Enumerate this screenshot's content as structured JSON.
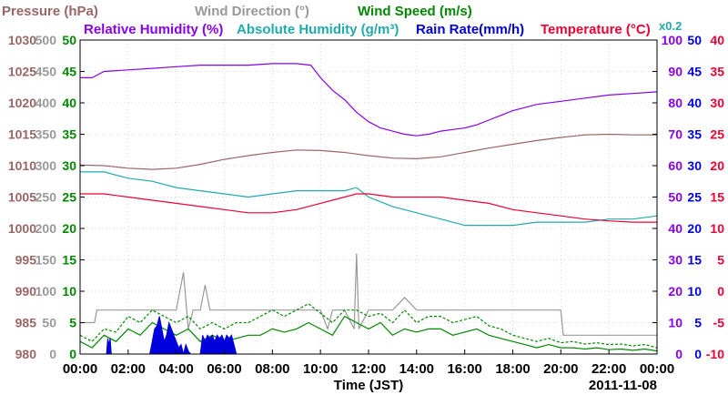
{
  "chart_data": {
    "type": "line",
    "date": "2011-11-08",
    "xlabel": "Time (JST)",
    "x_ticks": [
      "00:00",
      "02:00",
      "04:00",
      "06:00",
      "08:00",
      "10:00",
      "12:00",
      "14:00",
      "16:00",
      "18:00",
      "20:00",
      "22:00",
      "00:00"
    ],
    "xlim_hours": [
      0,
      24
    ],
    "grid": true,
    "legend_rows": [
      [
        {
          "name": "Pressure (hPa)",
          "color": "#996666"
        },
        {
          "name": "Wind Direction (°)",
          "color": "#999999"
        },
        {
          "name": "Wind Speed (m/s)",
          "color": "#008800"
        }
      ],
      [
        {
          "name": "Relative Humidity (%)",
          "color": "#8800ee"
        },
        {
          "name": "Absolute Humidity (g/m³)",
          "color": "#22aaaa"
        },
        {
          "name": "Rain Rate(mm/h)",
          "color": "#0000dd"
        },
        {
          "name": "Temperature (°C)",
          "color": "#ee0033"
        }
      ]
    ],
    "scale_note": "x0.2",
    "axes": {
      "pressure": {
        "ticks": [
          "1030",
          "1025",
          "1020",
          "1015",
          "1010",
          "1005",
          "1000",
          "995",
          "990",
          "985",
          "980"
        ],
        "ylim": [
          980,
          1030
        ],
        "color": "#996666"
      },
      "wind_direction": {
        "ticks": [
          "500",
          "450",
          "400",
          "350",
          "300",
          "250",
          "200",
          "150",
          "100",
          "50",
          "0"
        ],
        "ylim": [
          0,
          500
        ],
        "color": "#999999"
      },
      "wind_speed": {
        "ticks": [
          "50",
          "45",
          "40",
          "35",
          "30",
          "25",
          "20",
          "15",
          "10",
          "5",
          "0"
        ],
        "ylim": [
          0,
          50
        ],
        "color": "#008800"
      },
      "relative_humidity": {
        "ticks": [
          "100",
          "90",
          "80",
          "70",
          "60",
          "50",
          "40",
          "30",
          "20",
          "10",
          "0"
        ],
        "ylim": [
          0,
          100
        ],
        "color": "#8800ee"
      },
      "rain_rate": {
        "ticks": [
          "50",
          "45",
          "40",
          "35",
          "30",
          "25",
          "20",
          "15",
          "10",
          "5",
          "0"
        ],
        "ylim": [
          0,
          50
        ],
        "color": "#0000dd"
      },
      "temperature": {
        "ticks": [
          "40",
          "35",
          "30",
          "25",
          "20",
          "15",
          "10",
          "5",
          "0",
          "-5",
          "-10"
        ],
        "ylim": [
          -10,
          40
        ],
        "color": "#ee0033"
      }
    },
    "series": [
      {
        "name": "Relative Humidity (%)",
        "axis": "relative_humidity",
        "color": "#8800ee",
        "x": [
          0,
          0.5,
          1,
          2,
          3,
          4,
          5,
          6,
          7,
          8,
          9,
          9.6,
          10,
          10.5,
          11,
          11.5,
          12,
          12.5,
          13,
          13.5,
          14,
          14.5,
          15,
          15.5,
          16,
          16.5,
          17,
          17.5,
          18,
          18.5,
          19,
          20,
          21,
          22,
          23,
          24
        ],
        "y": [
          88,
          88,
          90,
          90.5,
          91,
          91.5,
          92,
          92,
          92,
          92.5,
          92.5,
          92,
          88,
          84,
          81,
          77,
          74,
          72,
          71,
          70,
          69.5,
          70,
          71,
          71.5,
          72,
          73,
          74.5,
          76,
          77.5,
          78.5,
          79.5,
          80.5,
          81.5,
          82.5,
          83,
          83.5
        ]
      },
      {
        "name": "Pressure (hPa)",
        "axis": "pressure",
        "color": "#996666",
        "x": [
          0,
          1,
          2,
          3,
          4,
          5,
          6,
          7,
          8,
          9,
          10,
          11,
          12,
          13,
          14,
          15,
          16,
          17,
          18,
          19,
          20,
          21,
          22,
          23,
          24
        ],
        "y": [
          1010.1,
          1010,
          1009.6,
          1009.4,
          1009.6,
          1010.2,
          1011,
          1011.6,
          1012.1,
          1012.5,
          1012.4,
          1012.1,
          1011.6,
          1011.2,
          1011.1,
          1011.4,
          1012.1,
          1012.8,
          1013.4,
          1014.0,
          1014.5,
          1014.9,
          1015.0,
          1014.9,
          1014.9
        ]
      },
      {
        "name": "Absolute Humidity (g/m³)",
        "axis": "wind_speed",
        "color": "#22aaaa",
        "x": [
          0,
          1,
          2,
          3,
          4,
          5,
          6,
          7,
          8,
          9,
          10,
          11,
          11.5,
          12,
          13,
          14,
          15,
          16,
          17,
          18,
          19,
          20,
          21,
          22,
          23,
          24
        ],
        "y": [
          29,
          29,
          28,
          27.5,
          26.5,
          26,
          25.5,
          25,
          25.5,
          26,
          26,
          26,
          26.5,
          25,
          23.5,
          22.5,
          21.5,
          20.5,
          20.5,
          20.5,
          21,
          21,
          21,
          21.5,
          21.5,
          22
        ]
      },
      {
        "name": "Temperature (°C)",
        "axis": "temperature",
        "color": "#ee0033",
        "x": [
          0,
          1,
          2,
          3,
          4,
          5,
          6,
          7,
          8,
          9,
          10,
          11,
          11.5,
          12,
          13,
          14,
          15,
          16,
          17,
          18,
          19,
          20,
          21,
          22,
          23,
          24
        ],
        "y": [
          15.5,
          15.5,
          15,
          14.5,
          14,
          13.5,
          13,
          12.5,
          12.5,
          13,
          14,
          15,
          15.5,
          15.5,
          15,
          15,
          15,
          14.5,
          14,
          13,
          12.5,
          12,
          11.5,
          11.2,
          11,
          11
        ]
      },
      {
        "name": "Wind Direction (°)",
        "axis": "wind_direction",
        "color": "#999999",
        "x": [
          0,
          0.6,
          0.7,
          1,
          2,
          3,
          4,
          4.3,
          4.5,
          4.7,
          5,
          5.2,
          5.4,
          6,
          7,
          8,
          9,
          10,
          10.3,
          10.5,
          11,
          11.4,
          11.5,
          11.6,
          12,
          12.5,
          13,
          13.5,
          14,
          14.5,
          15,
          15.5,
          16,
          16.5,
          17,
          17.5,
          18,
          19,
          20,
          20.1,
          21,
          22,
          23,
          24
        ],
        "y": [
          50,
          50,
          70,
          70,
          70,
          70,
          70,
          130,
          40,
          70,
          70,
          110,
          70,
          70,
          70,
          70,
          70,
          70,
          40,
          70,
          70,
          40,
          160,
          40,
          70,
          70,
          70,
          90,
          70,
          70,
          70,
          70,
          70,
          70,
          70,
          70,
          70,
          70,
          70,
          30,
          30,
          30,
          30,
          30
        ]
      },
      {
        "name": "Wind Speed (m/s)",
        "axis": "wind_speed",
        "color": "#008800",
        "x": [
          0,
          0.5,
          1,
          1.5,
          2,
          2.5,
          3,
          3.5,
          4,
          4.5,
          5,
          5.5,
          6,
          6.5,
          7,
          7.5,
          8,
          8.5,
          9,
          9.5,
          10,
          10.5,
          11,
          11.5,
          12,
          12.5,
          13,
          13.5,
          14,
          14.5,
          15,
          15.5,
          16,
          16.5,
          17,
          17.5,
          18,
          18.5,
          19,
          19.5,
          20,
          20.5,
          21,
          21.5,
          22,
          22.5,
          23,
          23.5,
          24
        ],
        "y": [
          2,
          1,
          3,
          2,
          4,
          3,
          5,
          4,
          3,
          4,
          2,
          3,
          2,
          2.5,
          3,
          3,
          4,
          3.5,
          4,
          5,
          4,
          3,
          6,
          5,
          4,
          5,
          3,
          4,
          3.5,
          4,
          4,
          3,
          3.5,
          4,
          3,
          2.5,
          2,
          1.5,
          1,
          1.5,
          1,
          1,
          0.8,
          1,
          0.7,
          0.8,
          0.6,
          0.8,
          0.5
        ]
      },
      {
        "name": "Wind Speed gust (m/s)",
        "axis": "wind_speed",
        "color": "#008800",
        "x": [
          0,
          0.5,
          1,
          1.5,
          2,
          2.5,
          3,
          3.5,
          4,
          4.5,
          5,
          5.5,
          6,
          6.5,
          7,
          7.5,
          8,
          8.5,
          9,
          9.5,
          10,
          10.5,
          11,
          11.5,
          12,
          12.5,
          13,
          13.5,
          14,
          14.5,
          15,
          15.5,
          16,
          16.5,
          17,
          17.5,
          18,
          18.5,
          19,
          19.5,
          20,
          20.5,
          21,
          21.5,
          22,
          22.5,
          23,
          23.5,
          24
        ],
        "y": [
          3,
          2,
          4,
          3.5,
          6,
          5,
          7,
          6,
          5,
          6,
          4,
          5,
          4,
          5,
          5,
          6,
          7,
          6,
          7,
          8,
          6.5,
          5,
          7,
          7,
          6,
          6.5,
          5,
          7,
          5,
          6,
          6,
          5,
          5.5,
          6,
          4.5,
          4,
          3,
          2.5,
          2,
          2.5,
          1.8,
          2,
          1.6,
          1.8,
          1.5,
          1.6,
          1.3,
          1.5,
          1
        ]
      },
      {
        "name": "Rain Rate(mm/h)",
        "axis": "rain_rate",
        "color": "#0000dd",
        "x": [
          0,
          1.1,
          1.15,
          1.2,
          1.25,
          1.3,
          2.9,
          3.0,
          3.1,
          3.2,
          3.3,
          3.4,
          3.5,
          3.6,
          3.7,
          3.8,
          3.9,
          4.0,
          4.1,
          4.2,
          4.3,
          4.4,
          4.5,
          4.6,
          5.0,
          5.1,
          5.2,
          5.3,
          5.4,
          5.5,
          5.6,
          5.7,
          5.8,
          5.9,
          6.0,
          6.1,
          6.2,
          6.3,
          6.4,
          6.5,
          24
        ],
        "y": [
          0,
          0,
          2.5,
          1.5,
          2.5,
          0,
          0,
          2,
          4,
          4.5,
          6,
          4,
          2,
          3,
          5,
          4,
          3,
          2,
          1,
          1.5,
          0,
          1.5,
          0.5,
          0,
          0,
          3,
          2,
          3,
          2.5,
          3,
          2,
          3,
          2.5,
          3,
          2,
          3,
          2.5,
          3,
          1.5,
          0,
          0
        ]
      }
    ]
  }
}
